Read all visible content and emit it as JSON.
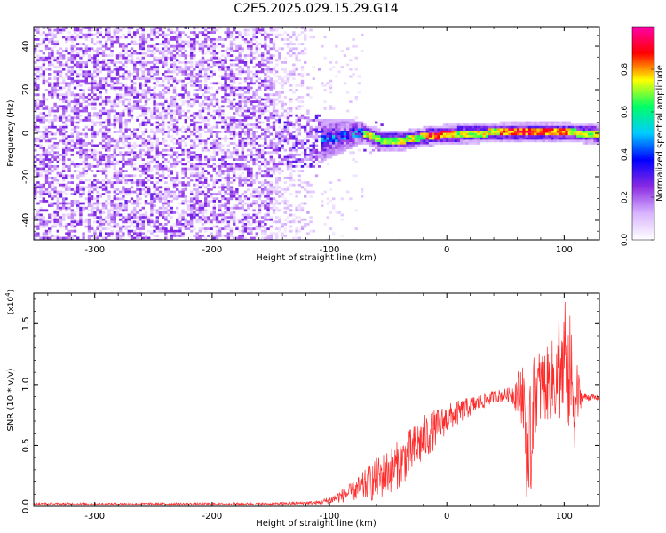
{
  "title": "C2E5.2025.029.15.29.G14",
  "chart_data": [
    {
      "type": "heatmap",
      "xlabel": "Height of straight line (km)",
      "ylabel": "Frequency (Hz)",
      "xlim": [
        -352,
        130
      ],
      "ylim": [
        -49,
        49
      ],
      "xticks": [
        -300,
        -200,
        -100,
        0,
        100
      ],
      "yticks": [
        -40,
        -20,
        0,
        20,
        40
      ],
      "colorbar": {
        "label": "Normalized spectral amplitude",
        "ticks": [
          "0.0",
          "0.2",
          "0.4",
          "0.6",
          "0.8"
        ],
        "tick_values": [
          0.0,
          0.2,
          0.4,
          0.6,
          0.8
        ],
        "range": [
          0,
          1
        ],
        "colors": [
          "#ffffff",
          "#d8b4ff",
          "#8a2be2",
          "#0000ff",
          "#00ccff",
          "#00ff66",
          "#ffff00",
          "#ff0000",
          "#ff00aa"
        ]
      },
      "regions": [
        {
          "x_range": [
            -352,
            -150
          ],
          "freq_range": [
            -49,
            49
          ],
          "amplitude_range": [
            0.05,
            0.25
          ],
          "pattern": "broadband noise"
        },
        {
          "x_range": [
            -150,
            -108
          ],
          "freq_range": [
            -49,
            49
          ],
          "amplitude_range": [
            0.02,
            0.12
          ],
          "pattern": "sparse noise fading"
        },
        {
          "x_range": [
            -115,
            -72
          ],
          "freq_range": [
            -10,
            10
          ],
          "amplitude_range": [
            0.15,
            0.45
          ],
          "pattern": "broadening carrier"
        },
        {
          "x_range": [
            -72,
            130
          ],
          "freq_range": [
            -4,
            4
          ],
          "amplitude_range": [
            0.4,
            0.95
          ],
          "pattern": "narrow carrier"
        }
      ],
      "carrier_center_hz": [
        {
          "x": -110,
          "f": -3
        },
        {
          "x": -75,
          "f": 1
        },
        {
          "x": -55,
          "f": -3
        },
        {
          "x": -40,
          "f": -3
        },
        {
          "x": -20,
          "f": -1
        },
        {
          "x": 0,
          "f": 0
        },
        {
          "x": 50,
          "f": 1
        },
        {
          "x": 100,
          "f": 1
        },
        {
          "x": 130,
          "f": 0
        }
      ]
    },
    {
      "type": "line",
      "xlabel": "Height of straight line (km)",
      "ylabel": "SNR (10 * v/v)",
      "y_multiplier": "(x10",
      "y_multiplier_exp": "4",
      "xlim": [
        -352,
        130
      ],
      "ylim": [
        0,
        1.75
      ],
      "xticks": [
        -300,
        -200,
        -100,
        0,
        100
      ],
      "yticks": [
        "0.0",
        "0.5",
        "1.0",
        "1.5"
      ],
      "ytick_values": [
        0.0,
        0.5,
        1.0,
        1.5
      ],
      "color": "#ff2a2a",
      "series": [
        {
          "x": [
            -352,
            -300,
            -250,
            -200,
            -150,
            -110,
            -100,
            -80,
            -60,
            -40,
            -20,
            0,
            20,
            40,
            55,
            65,
            70,
            75,
            85,
            95,
            102,
            108,
            115,
            130
          ],
          "y": [
            0.02,
            0.02,
            0.02,
            0.02,
            0.02,
            0.03,
            0.05,
            0.12,
            0.22,
            0.35,
            0.55,
            0.72,
            0.82,
            0.9,
            0.92,
            0.95,
            0.45,
            0.95,
            1.0,
            1.05,
            1.2,
            0.9,
            0.9,
            0.89
          ],
          "noise_amplitude": [
            0.01,
            0.01,
            0.01,
            0.01,
            0.01,
            0.015,
            0.03,
            0.08,
            0.18,
            0.2,
            0.2,
            0.12,
            0.08,
            0.05,
            0.06,
            0.3,
            0.45,
            0.35,
            0.3,
            0.4,
            0.55,
            0.5,
            0.04,
            0.02
          ]
        }
      ]
    }
  ]
}
